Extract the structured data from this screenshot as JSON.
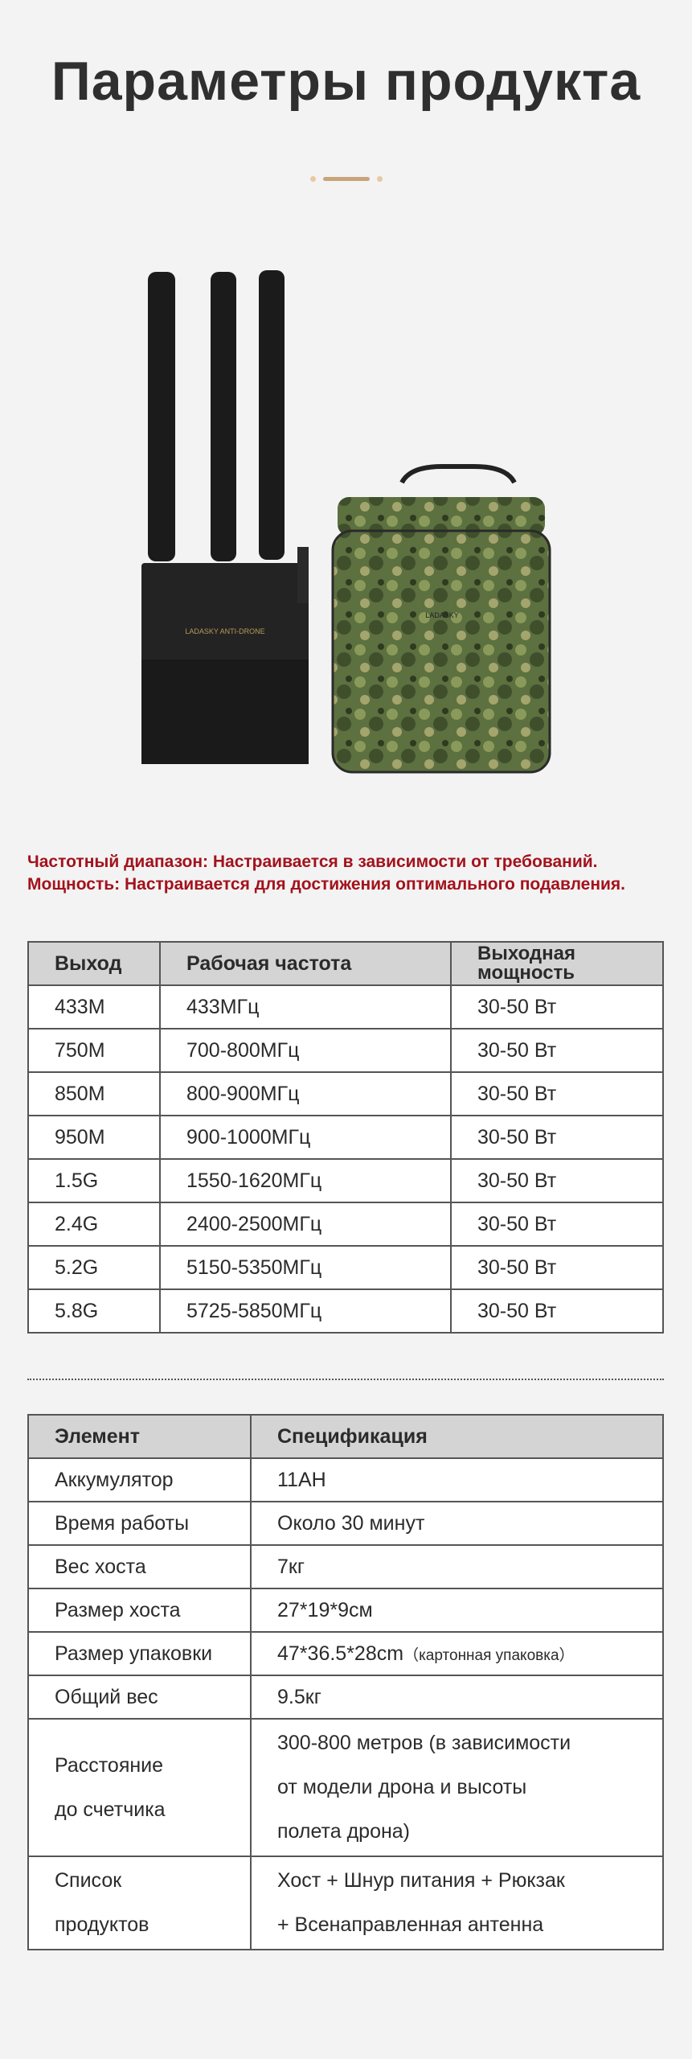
{
  "title": "Параметры продукта",
  "product_image": {
    "device_label": "LADASKY ANTI-DRONE",
    "bag_label": "LADASKY"
  },
  "notes": [
    "Частотный диапазон: Настраивается в зависимости от требований.",
    "Мощность: Настраивается для достижения оптимального подавления."
  ],
  "colors": {
    "note": "#a3121c",
    "accent": "#c9a47a",
    "header_bg": "#d4d4d4"
  },
  "freq_table": {
    "headers": [
      "Выход",
      "Рабочая частота",
      "Выходная мощность"
    ],
    "rows": [
      [
        "433M",
        "433МГц",
        "30-50 Вт"
      ],
      [
        "750M",
        "700-800МГц",
        "30-50 Вт"
      ],
      [
        "850M",
        "800-900МГц",
        "30-50 Вт"
      ],
      [
        "950M",
        "900-1000МГц",
        "30-50 Вт"
      ],
      [
        "1.5G",
        "1550-1620МГц",
        "30-50 Вт"
      ],
      [
        "2.4G",
        "2400-2500МГц",
        "30-50 Вт"
      ],
      [
        "5.2G",
        "5150-5350МГц",
        "30-50 Вт"
      ],
      [
        "5.8G",
        "5725-5850МГц",
        "30-50 Вт"
      ]
    ]
  },
  "spec_table": {
    "headers": [
      "Элемент",
      "Спецификация"
    ],
    "rows": [
      [
        "Аккумулятор",
        "11AH"
      ],
      [
        "Время работы",
        "Около 30 минут"
      ],
      [
        "Вес хоста",
        "7кг"
      ],
      [
        "Размер хоста",
        "27*19*9см"
      ],
      [
        "Размер упаковки",
        "47*36.5*28cm"
      ],
      [
        "Общий вес",
        "9.5кг"
      ]
    ],
    "package_note": "（картонная упаковка）",
    "distance": {
      "label_1": "Расстояние",
      "label_2": "до счетчика",
      "value_1": "300-800 метров (в зависимости",
      "value_2": "от модели дрона и высоты",
      "value_3": "полета дрона)"
    },
    "contents": {
      "label_1": "Список",
      "label_2": "продуктов",
      "value_1": "Хост + Шнур питания + Рюкзак",
      "value_2": "+ Всенаправленная антенна"
    }
  }
}
